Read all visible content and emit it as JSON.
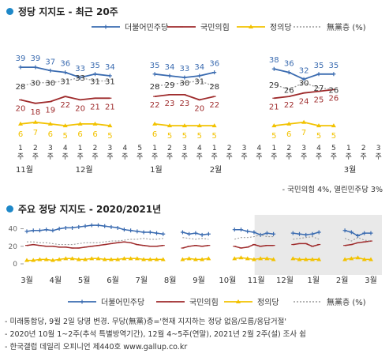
{
  "top": {
    "title": "정당 지지도 - 최근 20주",
    "side_note": "- 국민의힘 4%, 열린민주당 3%"
  },
  "bottom": {
    "title": "주요 정당 지지도 - 2020/2021년"
  },
  "footnotes": [
    "- 미래통합당, 9월 2일 당명 변경. 무당(無黨)층='현재 지지하는 정당 없음/모름/응답거절'",
    "- 2020년 10월 1~2주(추석 특별방역기간), 12월 4~5주(연말), 2021년 2월 2주(설) 조사 쉼",
    "- 한국갤럽 데일리 오피니언 제440호 www.gallup.co.kr"
  ],
  "colors": {
    "democratic": "#3a6bb0",
    "ppp": "#9e2a2b",
    "justice": "#f2c200",
    "nonpartisan": "#9a9a9a",
    "accent": "#1e88c8",
    "shade": "#e9e9e9"
  },
  "chart_data": [
    {
      "type": "line",
      "categories": [
        "1주",
        "2주",
        "3주",
        "4주",
        "1주",
        "2주",
        "3주",
        "4주",
        "5주",
        "1주",
        "2주",
        "3주",
        "4주",
        "1주",
        "2주",
        "3주",
        "4주",
        "1주",
        "2주",
        "3주",
        "4주",
        "5주",
        "1주",
        "2주",
        "3주"
      ],
      "month_labels": [
        {
          "label": "11월",
          "index": 0
        },
        {
          "label": "12월",
          "index": 4
        },
        {
          "label": "1월",
          "index": 9
        },
        {
          "label": "2월",
          "index": 13
        },
        {
          "label": "3월",
          "index": 22
        }
      ],
      "series": [
        {
          "name": "더불어민주당",
          "key": "democratic",
          "values": [
            39,
            39,
            37,
            36,
            33,
            35,
            34,
            null,
            null,
            35,
            34,
            33,
            34,
            36,
            null,
            null,
            null,
            38,
            36,
            32,
            35,
            35,
            null,
            null,
            null
          ]
        },
        {
          "name": "국민의힘",
          "key": "ppp",
          "values": [
            20,
            18,
            19,
            22,
            20,
            21,
            21,
            null,
            null,
            22,
            23,
            23,
            20,
            22,
            null,
            null,
            null,
            21,
            22,
            24,
            25,
            26,
            null,
            null,
            null
          ]
        },
        {
          "name": "정의당",
          "key": "justice",
          "values": [
            6,
            7,
            6,
            5,
            6,
            6,
            5,
            null,
            null,
            6,
            5,
            5,
            5,
            5,
            null,
            null,
            null,
            5,
            6,
            7,
            5,
            5,
            null,
            null,
            null
          ]
        },
        {
          "name": "無黨층 (%)",
          "key": "nonpartisan",
          "values": [
            28,
            30,
            30,
            31,
            33,
            31,
            31,
            null,
            null,
            28,
            29,
            30,
            31,
            28,
            null,
            null,
            null,
            29,
            26,
            30,
            27,
            26,
            null,
            null,
            null
          ]
        }
      ],
      "ylim": [
        0,
        45
      ],
      "grid": false,
      "legend": "top"
    },
    {
      "type": "line",
      "month_labels": [
        "3월",
        "4월",
        "5월",
        "6월",
        "7월",
        "8월",
        "9월",
        "10월",
        "11월",
        "12월",
        "1월",
        "2월",
        "3월"
      ],
      "shaded_from_month": "11월",
      "yticks": [
        0,
        20,
        40
      ],
      "ylim": [
        0,
        45
      ],
      "series": [
        {
          "name": "더불어민주당",
          "key": "democratic",
          "values": [
            37,
            38,
            38,
            39,
            38,
            40,
            41,
            41,
            42,
            43,
            44,
            44,
            43,
            42,
            41,
            39,
            38,
            37,
            36,
            36,
            35,
            34,
            null,
            null,
            36,
            34,
            35,
            33,
            34,
            null,
            null,
            null,
            39,
            39,
            37,
            36,
            33,
            35,
            34,
            null,
            null,
            35,
            34,
            33,
            34,
            36,
            null,
            null,
            null,
            38,
            36,
            32,
            35,
            35
          ]
        },
        {
          "name": "국민의힘",
          "key": "ppp",
          "values": [
            21,
            22,
            21,
            20,
            20,
            19,
            19,
            18,
            18,
            19,
            20,
            21,
            22,
            23,
            24,
            25,
            24,
            22,
            21,
            20,
            20,
            21,
            null,
            null,
            18,
            20,
            21,
            20,
            21,
            null,
            null,
            null,
            20,
            18,
            19,
            22,
            20,
            21,
            21,
            null,
            null,
            22,
            23,
            23,
            20,
            22,
            null,
            null,
            null,
            21,
            22,
            24,
            25,
            26
          ]
        },
        {
          "name": "정의당",
          "key": "justice",
          "values": [
            4,
            4,
            5,
            5,
            4,
            5,
            6,
            6,
            5,
            5,
            6,
            6,
            5,
            5,
            5,
            6,
            6,
            6,
            5,
            5,
            5,
            5,
            null,
            null,
            5,
            6,
            5,
            5,
            6,
            null,
            null,
            null,
            6,
            7,
            6,
            5,
            6,
            6,
            5,
            null,
            null,
            6,
            5,
            5,
            5,
            5,
            null,
            null,
            null,
            5,
            6,
            7,
            5,
            5
          ]
        },
        {
          "name": "無黨층 (%)",
          "key": "nonpartisan",
          "values": [
            25,
            25,
            24,
            24,
            23,
            22,
            22,
            22,
            23,
            24,
            24,
            24,
            25,
            26,
            26,
            27,
            28,
            28,
            29,
            28,
            28,
            29,
            null,
            null,
            30,
            29,
            28,
            29,
            28,
            null,
            null,
            null,
            28,
            30,
            30,
            31,
            33,
            31,
            31,
            null,
            null,
            28,
            29,
            30,
            31,
            28,
            null,
            null,
            null,
            29,
            26,
            30,
            27,
            26
          ]
        }
      ],
      "legend": "bottom"
    }
  ]
}
